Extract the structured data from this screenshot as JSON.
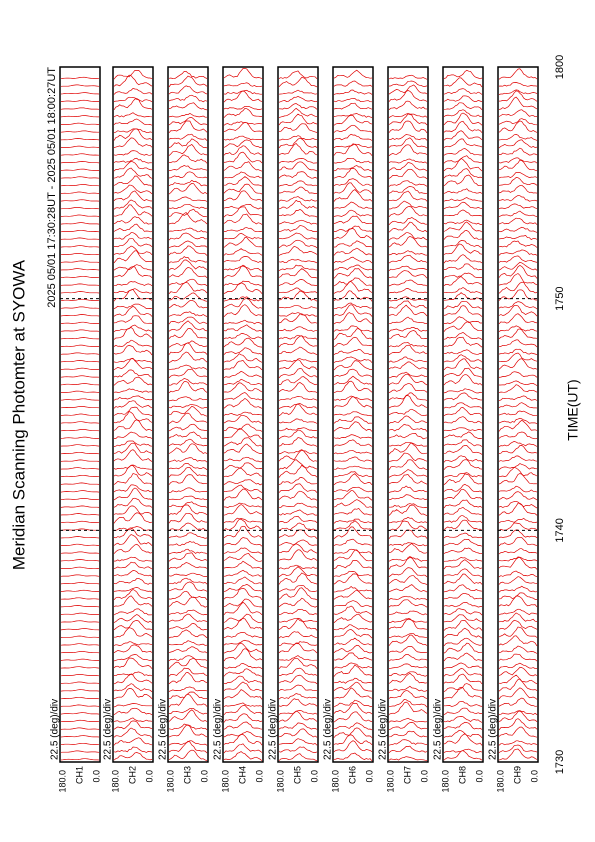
{
  "chart_data": {
    "type": "msp",
    "title": "Meridian Scanning Photomter at SYOWA",
    "subtitle": "2025 05/01 17:30:28UT - 2025 05/01 18:00:27UT",
    "x_label": "TIME(UT)",
    "xticks": [
      "1730",
      "1740",
      "1750",
      "1800"
    ],
    "panels": [
      {
        "scale": "22.5 (deg)/div",
        "channel": "CH1",
        "top": "180.0",
        "bottom": "0.0"
      },
      {
        "scale": "22.5 (deg)/div",
        "channel": "CH2",
        "top": "180.0",
        "bottom": "0.0"
      },
      {
        "scale": "22.5 (deg)/div",
        "channel": "CH3",
        "top": "180.0",
        "bottom": "0.0"
      },
      {
        "scale": "22.5 (deg)/div",
        "channel": "CH4",
        "top": "180.0",
        "bottom": "0.0"
      },
      {
        "scale": "22.5 (deg)/div",
        "channel": "CH5",
        "top": "180.0",
        "bottom": "0.0"
      },
      {
        "scale": "22.5 (deg)/div",
        "channel": "CH6",
        "top": "180.0",
        "bottom": "0.0"
      },
      {
        "scale": "22.5 (deg)/div",
        "channel": "CH7",
        "top": "180.0",
        "bottom": "0.0"
      },
      {
        "scale": "22.5 (deg)/div",
        "channel": "CH8",
        "top": "180.0",
        "bottom": "0.0"
      },
      {
        "scale": "22.5 (deg)/div",
        "channel": "CH9",
        "top": "180.0",
        "bottom": "0.0"
      }
    ],
    "color": "#e00000"
  }
}
